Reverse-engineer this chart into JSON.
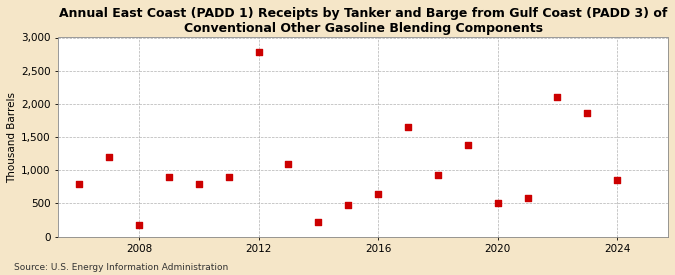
{
  "title": "Annual East Coast (PADD 1) Receipts by Tanker and Barge from Gulf Coast (PADD 3) of\nConventional Other Gasoline Blending Components",
  "ylabel": "Thousand Barrels",
  "source": "Source: U.S. Energy Information Administration",
  "background_color": "#f5e6c8",
  "plot_background_color": "#ffffff",
  "point_color": "#cc0000",
  "marker": "s",
  "marker_size": 4,
  "xlim": [
    2005.3,
    2025.7
  ],
  "ylim": [
    0,
    3000
  ],
  "yticks": [
    0,
    500,
    1000,
    1500,
    2000,
    2500,
    3000
  ],
  "ytick_labels": [
    "0",
    "500",
    "1,000",
    "1,500",
    "2,000",
    "2,500",
    "3,000"
  ],
  "xticks": [
    2008,
    2012,
    2016,
    2020,
    2024
  ],
  "years": [
    2006,
    2007,
    2008,
    2009,
    2010,
    2011,
    2012,
    2013,
    2014,
    2015,
    2016,
    2017,
    2018,
    2019,
    2020,
    2021,
    2022,
    2023,
    2024
  ],
  "values": [
    800,
    1200,
    170,
    900,
    800,
    900,
    2780,
    1100,
    220,
    480,
    640,
    1650,
    930,
    1380,
    510,
    580,
    2100,
    1860,
    860
  ],
  "title_fontsize": 9,
  "tick_fontsize": 7.5,
  "ylabel_fontsize": 7.5,
  "source_fontsize": 6.5
}
